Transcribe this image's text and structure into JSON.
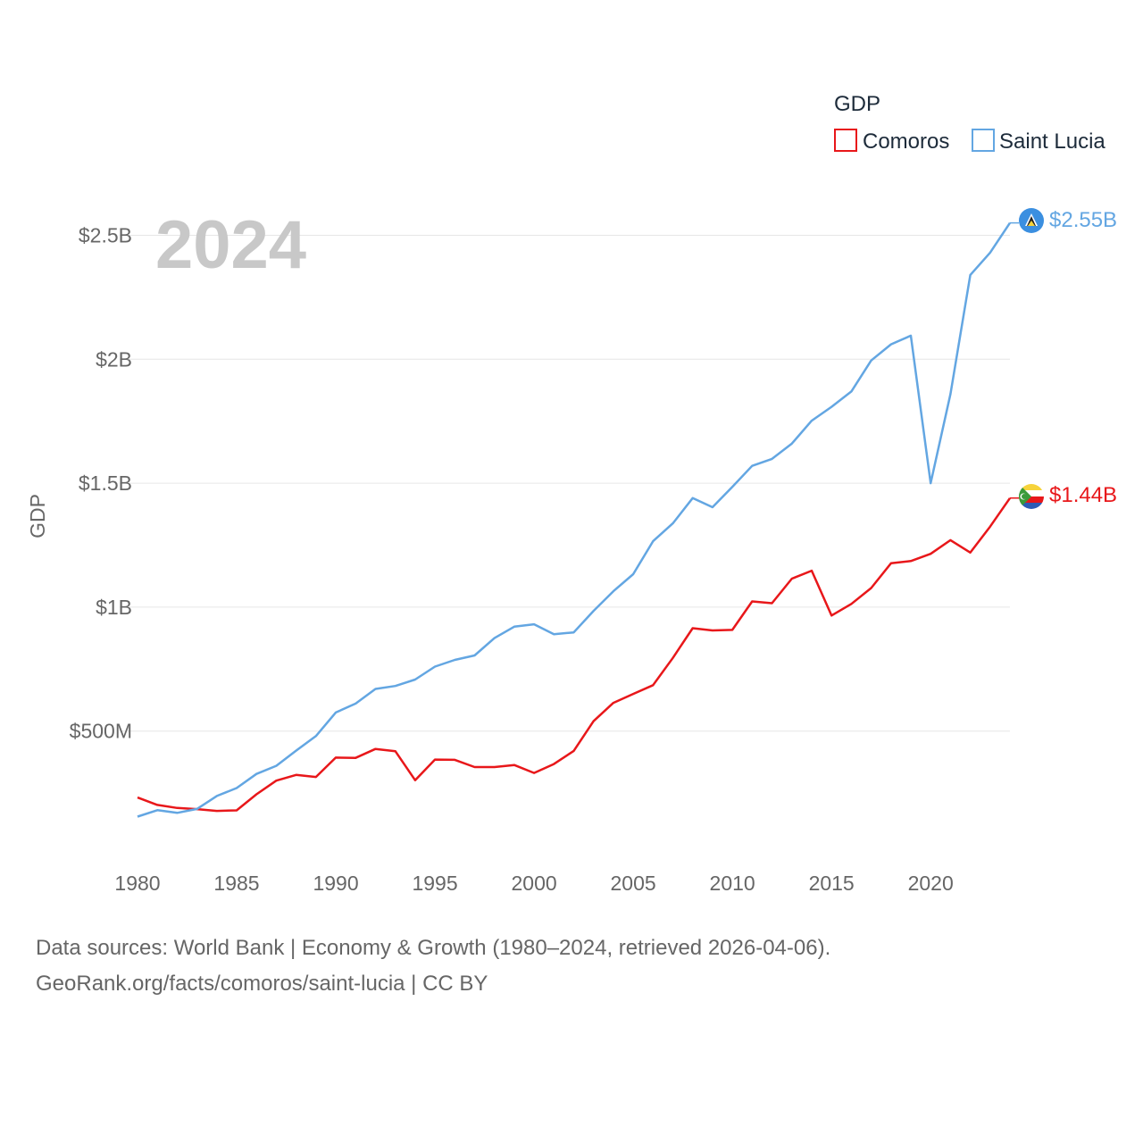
{
  "chart_data": {
    "type": "line",
    "title": "",
    "year_label": "2024",
    "xlabel": "",
    "ylabel": "GDP",
    "xlim": [
      1980,
      2024
    ],
    "ylim": [
      0,
      2700000000
    ],
    "x_ticks": [
      1980,
      1985,
      1990,
      1995,
      2000,
      2005,
      2010,
      2015,
      2020
    ],
    "x_tick_labels": [
      "1980",
      "1985",
      "1990",
      "1995",
      "2000",
      "2005",
      "2010",
      "2015",
      "2020"
    ],
    "y_ticks": [
      500000000,
      1000000000,
      1500000000,
      2000000000,
      2500000000
    ],
    "y_tick_labels": [
      "$500M",
      "$1B",
      "$1.5B",
      "$2B",
      "$2.5B"
    ],
    "legend": {
      "title": "GDP",
      "position": "top-right"
    },
    "grid": true,
    "x": [
      1980,
      1981,
      1982,
      1983,
      1984,
      1985,
      1986,
      1987,
      1988,
      1989,
      1990,
      1991,
      1992,
      1993,
      1994,
      1995,
      1996,
      1997,
      1998,
      1999,
      2000,
      2001,
      2002,
      2003,
      2004,
      2005,
      2006,
      2007,
      2008,
      2009,
      2010,
      2011,
      2012,
      2013,
      2014,
      2015,
      2016,
      2017,
      2018,
      2019,
      2020,
      2021,
      2022,
      2023,
      2024
    ],
    "series": [
      {
        "name": "Comoros",
        "color": "#e8171a",
        "end_label": "$1.44B",
        "values": [
          232000000,
          202000000,
          190000000,
          185000000,
          178000000,
          180000000,
          245000000,
          300000000,
          323000000,
          315000000,
          393000000,
          392000000,
          428000000,
          419000000,
          302000000,
          385000000,
          384000000,
          355000000,
          355000000,
          363000000,
          331000000,
          367000000,
          420000000,
          540000000,
          614000000,
          650000000,
          685000000,
          795000000,
          915000000,
          906000000,
          908000000,
          1023000000,
          1016000000,
          1115000000,
          1147000000,
          966000000,
          1013000000,
          1077000000,
          1177000000,
          1186000000,
          1215000000,
          1270000000,
          1220000000,
          1325000000,
          1440000000
        ]
      },
      {
        "name": "Saint Lucia",
        "color": "#63a6e2",
        "end_label": "$2.55B",
        "values": [
          155000000,
          181000000,
          170000000,
          186000000,
          238000000,
          270000000,
          327000000,
          360000000,
          421000000,
          480000000,
          575000000,
          611000000,
          670000000,
          682000000,
          708000000,
          760000000,
          787000000,
          805000000,
          875000000,
          921000000,
          931000000,
          891000000,
          898000000,
          985000000,
          1064000000,
          1133000000,
          1266000000,
          1338000000,
          1440000000,
          1403000000,
          1485000000,
          1570000000,
          1598000000,
          1660000000,
          1752000000,
          1808000000,
          1870000000,
          1995000000,
          2060000000,
          2095000000,
          1500000000,
          1860000000,
          2340000000,
          2430000000,
          2550000000
        ]
      }
    ]
  },
  "source_line1": "Data sources: World Bank | Economy & Growth (1980–2024, retrieved 2026-04-06).",
  "source_line2": "GeoRank.org/facts/comoros/saint-lucia | CC BY"
}
